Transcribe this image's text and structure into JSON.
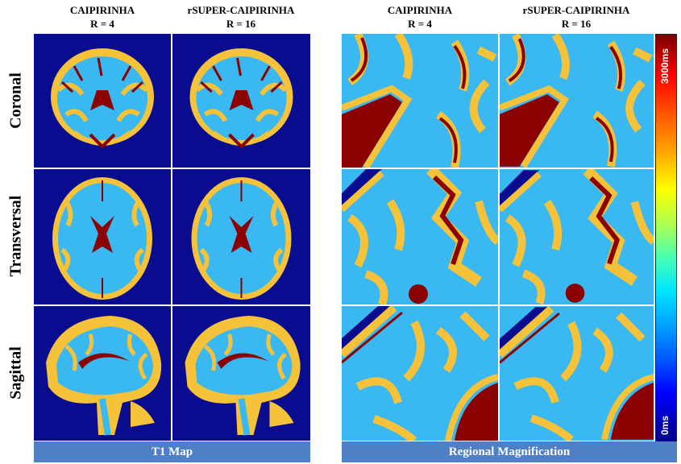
{
  "headers": {
    "caipirinha": "CAIPIRINHA",
    "caipirinha_r": "R = 4",
    "rsuper": "rSUPER-CAIPIRINHA",
    "rsuper_r": "R = 16"
  },
  "rows": {
    "coronal": "Coronal",
    "transversal": "Transversal",
    "sagittal": "Sagittal"
  },
  "footers": {
    "left": "T1 Map",
    "right": "Regional Magnification"
  },
  "colorbar": {
    "max_label": "3000ms",
    "min_label": "0ms",
    "colors": {
      "background": "#0a0c8f",
      "white_matter": "#39b8f2",
      "gray_matter": "#f5c23a",
      "csf": "#8b0000"
    }
  }
}
